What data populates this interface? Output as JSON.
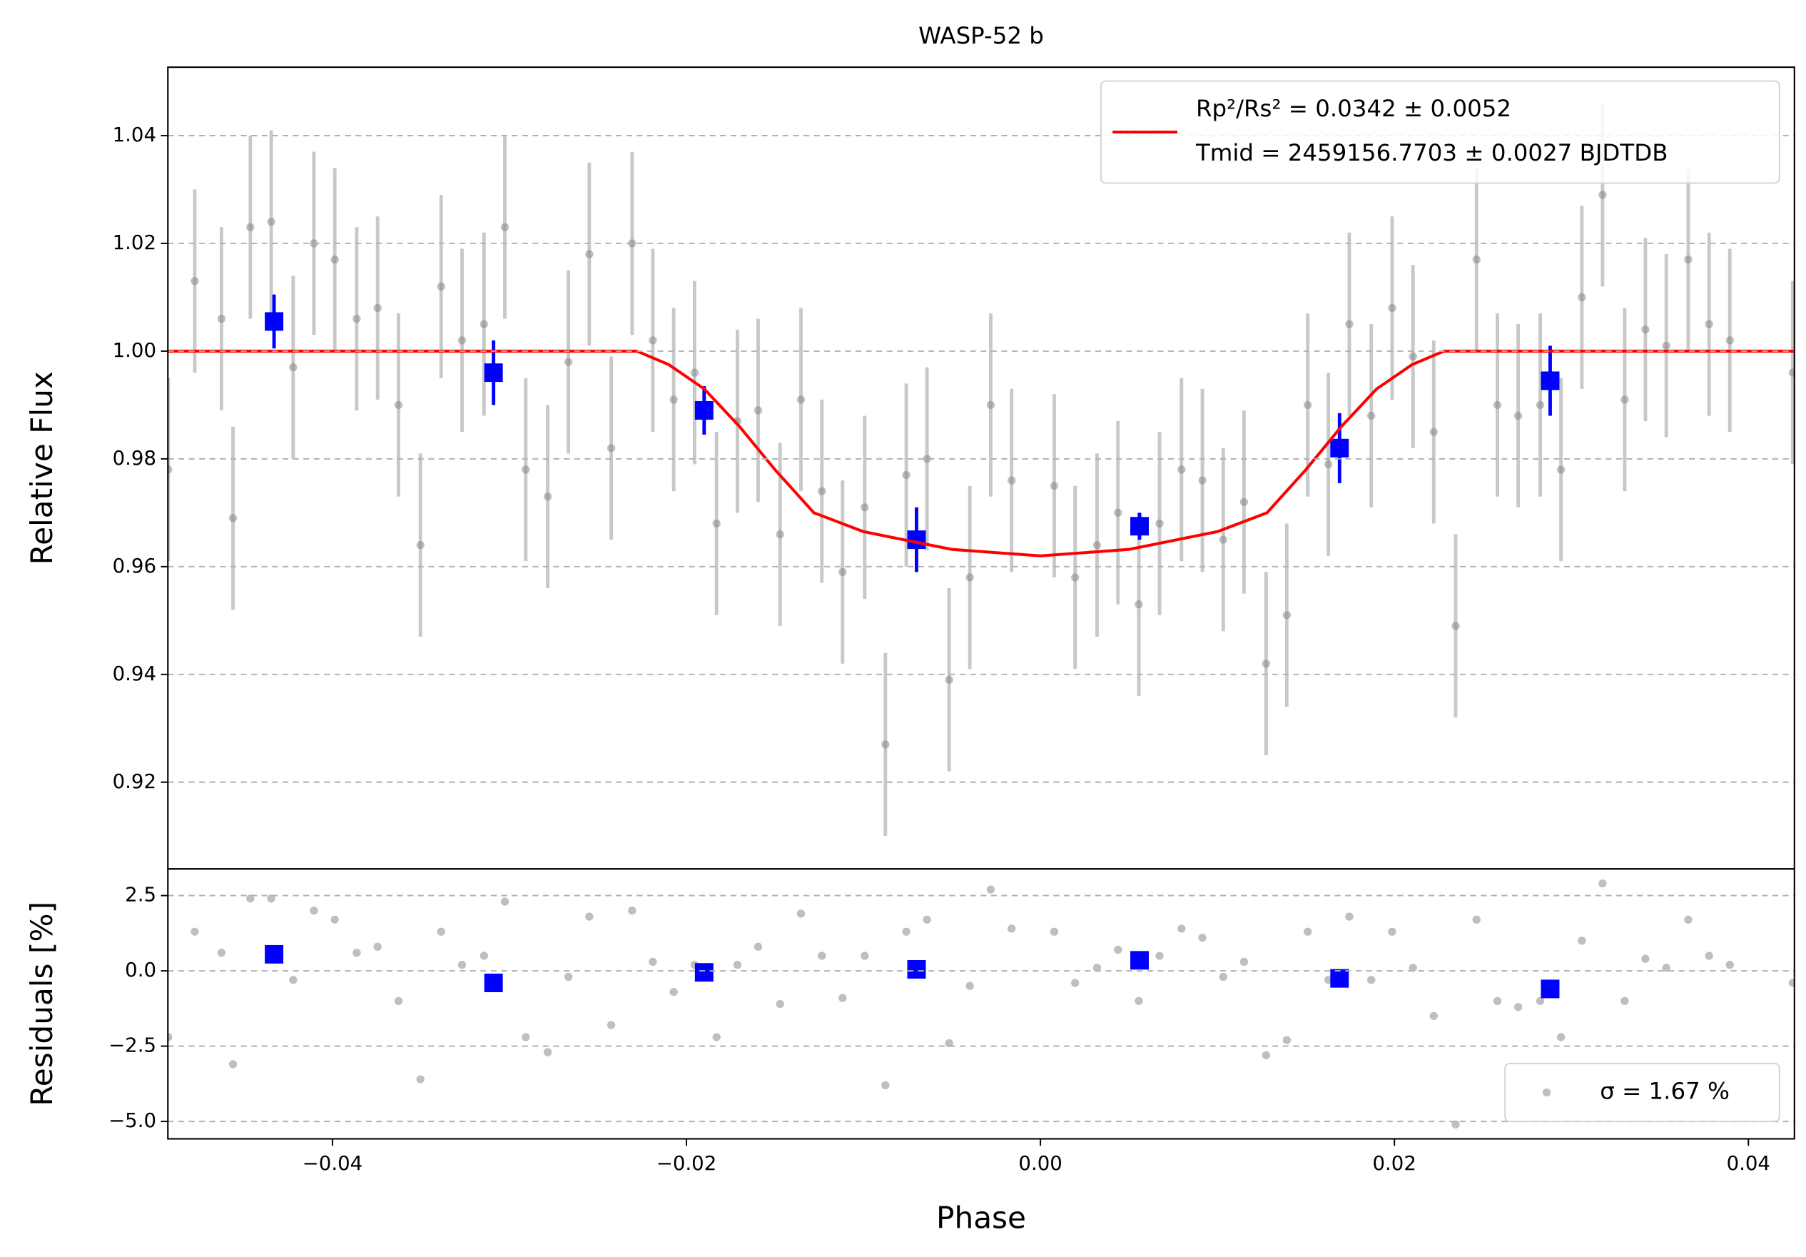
{
  "chart_data": [
    {
      "type": "scatter",
      "title": "WASP-52 b",
      "ylabel": "Relative Flux",
      "xlim": [
        -0.0493,
        0.0426
      ],
      "ylim": [
        0.9039,
        1.0527
      ],
      "yticks": [
        0.92,
        0.94,
        0.96,
        0.98,
        {
          "value": 1,
          "label": "1.00"
        },
        1.02,
        1.04
      ],
      "grid": true,
      "legend": "upper right",
      "series": [
        {
          "marker": "o",
          "color": "#808080",
          "x": [
            -0.04928,
            -0.04778,
            -0.04627,
            -0.04562,
            -0.04464,
            -0.04346,
            -0.04222,
            -0.04105,
            -0.03987,
            -0.03863,
            -0.03745,
            -0.03627,
            -0.03503,
            -0.03386,
            -0.03268,
            -0.03144,
            -0.03026,
            -0.02908,
            -0.02784,
            -0.02667,
            -0.02549,
            -0.02425,
            -0.02307,
            -0.0219,
            -0.02072,
            -0.01954,
            -0.0183,
            -0.01712,
            -0.01595,
            -0.01471,
            -0.01353,
            -0.01235,
            -0.01118,
            -0.00993,
            -0.00876,
            -0.00758,
            -0.00641,
            -0.00516,
            -0.00399,
            -0.00281,
            -0.00163,
            0.00078,
            0.00196,
            0.0032,
            0.00438,
            0.00556,
            0.00673,
            0.00797,
            0.00915,
            0.01033,
            0.0115,
            0.01275,
            0.01392,
            0.0151,
            0.01627,
            0.01745,
            0.01869,
            0.01987,
            0.02105,
            0.02222,
            0.02346,
            0.02464,
            0.02582,
            0.02699,
            0.02824,
            0.02941,
            0.03059,
            0.03176,
            0.03301,
            0.03418,
            0.03536,
            0.0366,
            0.03778,
            0.03895,
            0.0425
          ],
          "values": [
            0.978,
            1.013,
            1.006,
            0.969,
            1.023,
            1.024,
            0.997,
            1.02,
            1.017,
            1.006,
            1.008,
            0.99,
            0.964,
            1.012,
            1.002,
            1.005,
            1.023,
            0.978,
            0.973,
            0.998,
            1.018,
            0.982,
            1.02,
            1.002,
            0.991,
            0.996,
            0.968,
            0.987,
            0.989,
            0.966,
            0.991,
            0.974,
            0.959,
            0.971,
            0.927,
            0.977,
            0.98,
            0.939,
            0.958,
            0.99,
            0.976,
            0.975,
            0.958,
            0.964,
            0.97,
            0.953,
            0.968,
            0.978,
            0.976,
            0.965,
            0.972,
            0.942,
            0.951,
            0.99,
            0.979,
            1.005,
            0.988,
            1.008,
            0.999,
            0.985,
            0.949,
            1.017,
            0.99,
            0.988,
            0.99,
            0.978,
            1.01,
            1.029,
            0.991,
            1.004,
            1.001,
            1.017,
            1.005,
            1.002,
            0.996
          ],
          "errors": [
            0.017,
            0.017,
            0.017,
            0.017,
            0.017,
            0.017,
            0.017,
            0.017,
            0.017,
            0.017,
            0.017,
            0.017,
            0.017,
            0.017,
            0.017,
            0.017,
            0.017,
            0.017,
            0.017,
            0.017,
            0.017,
            0.017,
            0.017,
            0.017,
            0.017,
            0.017,
            0.017,
            0.017,
            0.017,
            0.017,
            0.017,
            0.017,
            0.017,
            0.017,
            0.017,
            0.017,
            0.017,
            0.017,
            0.017,
            0.017,
            0.017,
            0.017,
            0.017,
            0.017,
            0.017,
            0.017,
            0.017,
            0.017,
            0.017,
            0.017,
            0.017,
            0.017,
            0.017,
            0.017,
            0.017,
            0.017,
            0.017,
            0.017,
            0.017,
            0.017,
            0.017,
            0.017,
            0.017,
            0.017,
            0.017,
            0.017,
            0.017,
            0.017,
            0.017,
            0.017,
            0.017,
            0.017,
            0.017,
            0.017,
            0.017
          ]
        },
        {
          "marker": "s",
          "color": "#0000ff",
          "x": [
            -0.0433,
            -0.0309,
            -0.019,
            -0.007,
            0.0056,
            0.0169,
            0.0288
          ],
          "values": [
            1.0055,
            0.996,
            0.989,
            0.965,
            0.9675,
            0.982,
            0.9945
          ],
          "errors": [
            0.005,
            0.006,
            0.0045,
            0.006,
            0.0025,
            0.0065,
            0.0065
          ]
        },
        {
          "marker": "line",
          "color": "#ff0000",
          "name": [
            "Rp²/Rs² = 0.0342 ± 0.0052",
            "Tmid = 2459156.7703 ± 0.0027 BJDTDB"
          ],
          "x": [
            -0.0493,
            -0.0228,
            -0.021,
            -0.019,
            -0.017,
            -0.015,
            -0.0128,
            -0.01,
            -0.005,
            0,
            0.005,
            0.01,
            0.0128,
            0.015,
            0.017,
            0.019,
            0.021,
            0.0228,
            0.0426
          ],
          "values": [
            1,
            1,
            0.9975,
            0.993,
            0.986,
            0.978,
            0.97,
            0.9665,
            0.9632,
            0.962,
            0.9632,
            0.9665,
            0.97,
            0.978,
            0.986,
            0.993,
            0.9975,
            1,
            1
          ]
        }
      ]
    },
    {
      "type": "scatter",
      "ylabel": "Residuals [%]",
      "xlabel": "Phase",
      "xlim": [
        -0.0493,
        0.0426
      ],
      "ylim": [
        -5.577,
        3.385
      ],
      "xticks": [
        {
          "value": -0.04,
          "label": "−0.04"
        },
        {
          "value": -0.02,
          "label": "−0.02"
        },
        {
          "value": 0,
          "label": "0.00"
        },
        0.02,
        0.04
      ],
      "yticks": [
        {
          "value": -5,
          "label": "−5.0"
        },
        {
          "value": -2.5,
          "label": "−2.5"
        },
        {
          "value": 0,
          "label": "0.0"
        },
        2.5
      ],
      "grid": true,
      "legend": "lower right",
      "series": [
        {
          "marker": "o",
          "color": "#808080",
          "name": "σ = 1.67 %",
          "x": [
            -0.04928,
            -0.04778,
            -0.04627,
            -0.04562,
            -0.04464,
            -0.04346,
            -0.04222,
            -0.04105,
            -0.03987,
            -0.03863,
            -0.03745,
            -0.03627,
            -0.03503,
            -0.03386,
            -0.03268,
            -0.03144,
            -0.03026,
            -0.02908,
            -0.02784,
            -0.02667,
            -0.02549,
            -0.02425,
            -0.02307,
            -0.0219,
            -0.02072,
            -0.01954,
            -0.0183,
            -0.01712,
            -0.01595,
            -0.01471,
            -0.01353,
            -0.01235,
            -0.01118,
            -0.00993,
            -0.00876,
            -0.00758,
            -0.00641,
            -0.00516,
            -0.00399,
            -0.00281,
            -0.00163,
            0.00078,
            0.00196,
            0.0032,
            0.00438,
            0.00556,
            0.00673,
            0.00797,
            0.00915,
            0.01033,
            0.0115,
            0.01275,
            0.01392,
            0.0151,
            0.01627,
            0.01745,
            0.01869,
            0.01987,
            0.02105,
            0.02222,
            0.02346,
            0.02464,
            0.02582,
            0.02699,
            0.02824,
            0.02941,
            0.03059,
            0.03176,
            0.03301,
            0.03418,
            0.03536,
            0.0366,
            0.03778,
            0.03895,
            0.0425
          ],
          "values": [
            -2.2,
            1.3,
            0.6,
            -3.1,
            2.4,
            2.4,
            -0.3,
            2,
            1.7,
            0.6,
            0.8,
            -1,
            -3.6,
            1.3,
            0.2,
            0.5,
            2.3,
            -2.2,
            -2.7,
            -0.2,
            1.8,
            -1.8,
            2,
            0.3,
            -0.7,
            0.2,
            -2.2,
            0.2,
            0.8,
            -1.1,
            1.9,
            0.5,
            -0.9,
            0.5,
            -3.8,
            1.3,
            1.7,
            -2.4,
            -0.5,
            2.7,
            1.4,
            1.3,
            -0.4,
            0.1,
            0.7,
            -1,
            0.5,
            1.4,
            1.1,
            -0.2,
            0.3,
            -2.8,
            -2.3,
            1.3,
            -0.3,
            1.8,
            -0.3,
            1.3,
            0.1,
            -1.5,
            -5.1,
            1.7,
            -1,
            -1.2,
            -1,
            -2.2,
            1,
            2.9,
            -1,
            0.4,
            0.1,
            1.7,
            0.5,
            0.2,
            -0.4
          ]
        },
        {
          "marker": "s",
          "color": "#0000ff",
          "x": [
            -0.0433,
            -0.0309,
            -0.019,
            -0.007,
            0.0056,
            0.0169,
            0.0288
          ],
          "values": [
            0.55,
            -0.4,
            -0.05,
            0.05,
            0.35,
            -0.25,
            -0.6
          ]
        }
      ]
    }
  ]
}
